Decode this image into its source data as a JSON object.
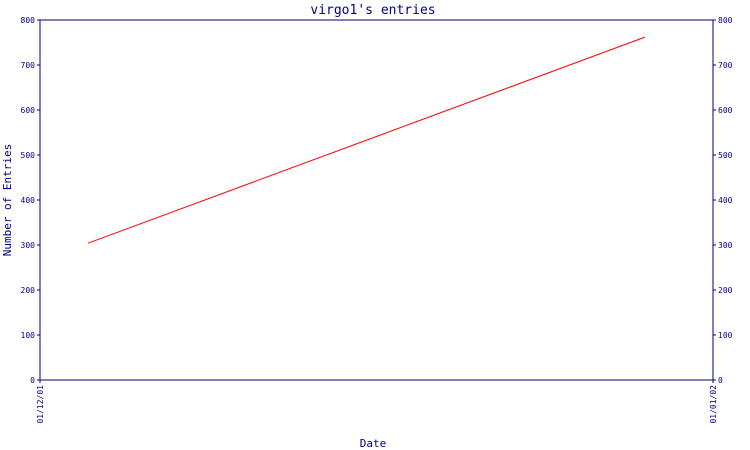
{
  "chart_data": {
    "type": "line",
    "title": "virgo1's entries",
    "xlabel": "Date",
    "ylabel": "Number of Entries",
    "x_tick_labels": [
      "01/12/01",
      "01/01/02"
    ],
    "ylim": [
      0,
      800
    ],
    "yticks": [
      0,
      100,
      200,
      300,
      400,
      500,
      600,
      700,
      800
    ],
    "y_axis_sides": [
      "left",
      "right"
    ],
    "grid": false,
    "legend": "none",
    "series": [
      {
        "x": [
          "01/12/01",
          "01/01/02"
        ],
        "values": [
          304,
          762
        ],
        "color": "#ff0000"
      }
    ],
    "axis_color": "#00007f"
  }
}
